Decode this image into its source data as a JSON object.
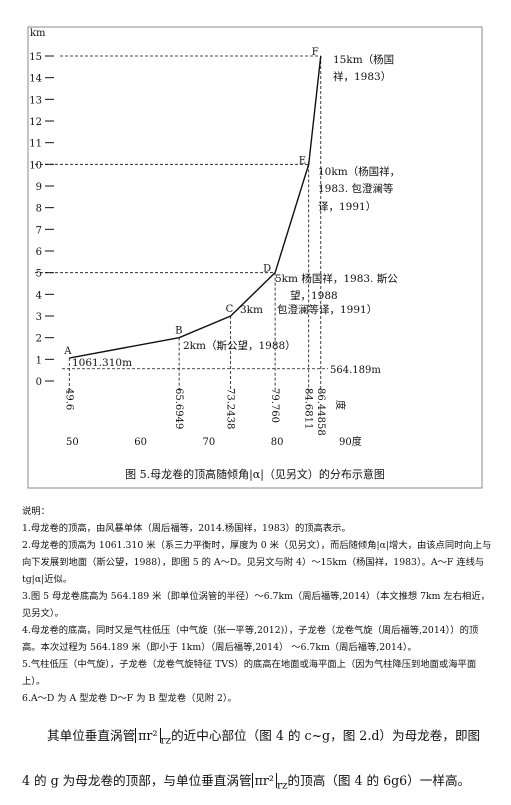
{
  "chart_data": {
    "type": "line",
    "y_axis_label": "km",
    "point_names": [
      "A",
      "B",
      "C",
      "D",
      "E",
      "F"
    ],
    "x": [
      49.6,
      65.6949,
      73.2438,
      79.76,
      84.6811,
      86.44858
    ],
    "x_value_labels": [
      "49.6",
      "65.6949",
      "73.2438",
      "79.760",
      "84.6811",
      "86.44858"
    ],
    "x_unit": "度",
    "y": [
      1.06131,
      2,
      3,
      5,
      10,
      15
    ],
    "value_labels": [
      [
        "1061.310m"
      ],
      [
        "2km（斯公望，1988）"
      ],
      [
        "3km"
      ],
      [
        "5km 杨国祥，1983. 斯公",
        "望，1988",
        "包澄澜等译，1991）"
      ],
      [
        "10km（杨国祥，",
        "1983. 包澄澜等",
        "译，1991）"
      ],
      [
        "15km（杨国",
        "祥，1983）"
      ]
    ],
    "ref_line": {
      "value": 0.564189,
      "label": "564.189m"
    },
    "color": "#111111",
    "xlim": [
      50,
      90
    ],
    "xticks": [
      50,
      60,
      70,
      {
        "value": 80,
        "label": "80"
      },
      {
        "value": 90,
        "label": "90度"
      }
    ],
    "ylim": [
      0,
      15
    ],
    "yticks": [
      0,
      1,
      2,
      3,
      4,
      5,
      6,
      7,
      8,
      9,
      10,
      11,
      12,
      13,
      14,
      15
    ],
    "caption": "图 5.母龙卷的顶高随倾角|α|（见另文）的分布示意图"
  },
  "notes": {
    "heading": "说明：",
    "items": [
      "1.母龙卷的顶高，由风暴单体（周后福等，2014.杨国祥，1983）的顶高表示。",
      "2.母龙卷的顶高为 1061.310 米（系三力平衡时，厚度为 0 米（见另文），而后随倾角|α|增大，由该点同时向上与向下发展到地面（斯公望，1988），即图 5 的 A～D。见另文与附 4）～15km（杨国祥，1983）。A～F 连线与tg|α|近似。",
      "3.图 5 母龙卷底高为 564.189 米（即单位涡管的半径）～6.7km（周后福等,2014）（本文推想 7km 左右相近，见另文）。",
      "4.母龙卷的底高，同时又是气柱低压（中气旋（张一平等,2012)），子龙卷（龙卷气旋（周后福等,2014））的顶高。本次过程为 564.189 米（即小于 1km）（周后福等,2014） ～6.7km（周后福等,2014）。",
      "5.气柱低压（中气旋），子龙卷（龙卷气旋特征 TVS）的底高在地面或海平面上（因为气柱降压到地面或海平面上）。",
      "6.A～D 为 A 型龙卷 D～F 为 B 型龙卷（见附 2）。"
    ]
  },
  "body": {
    "part1": "其单位垂直涡管",
    "formula": "πr²",
    "formula_sub": "rz",
    "part2": "的近中心部位（图 4 的 c~g，图 2.d）为母龙卷，即图 4 的 g 为母龙卷的顶部，与单位垂直涡管",
    "part3": "的顶高（图 4 的 6g6）一样高。"
  }
}
